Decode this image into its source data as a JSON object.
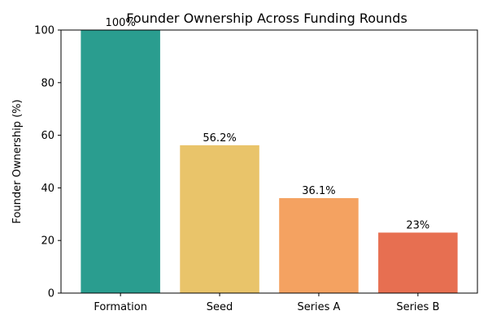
{
  "chart_data": {
    "type": "bar",
    "title": "Founder Ownership Across Funding Rounds",
    "xlabel": "",
    "ylabel": "Founder Ownership (%)",
    "ylim": [
      0,
      100
    ],
    "yticks": [
      0,
      20,
      40,
      60,
      80,
      100
    ],
    "categories": [
      "Formation",
      "Seed",
      "Series A",
      "Series B"
    ],
    "values": [
      100,
      56.2,
      36.1,
      23
    ],
    "value_labels": [
      "100%",
      "56.2%",
      "36.1%",
      "23%"
    ],
    "colors": [
      "#2a9d8f",
      "#e9c46a",
      "#f4a261",
      "#e76f51"
    ],
    "grid": false,
    "legend": "none"
  }
}
